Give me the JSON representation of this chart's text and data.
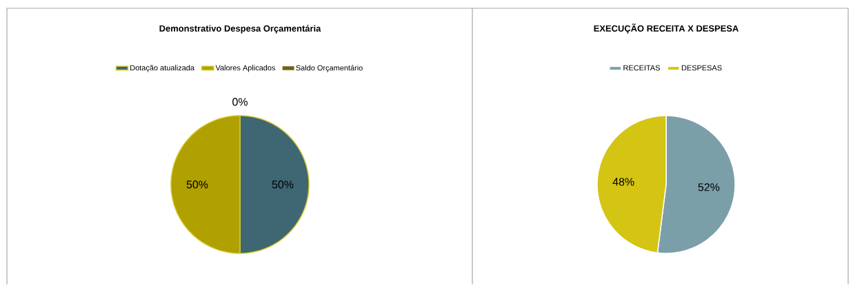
{
  "chart_data": [
    {
      "type": "pie",
      "title": "Demonstrativo Despesa Orçamentária",
      "categories": [
        "Dotação atualizada",
        "Valores Aplicados",
        "Saldo Orçamentário"
      ],
      "values": [
        50,
        50,
        0
      ],
      "value_labels": [
        "50%",
        "50%",
        "0%"
      ],
      "colors": [
        "#3f6673",
        "#b0a000",
        "#6b6030"
      ],
      "legend": "top"
    },
    {
      "type": "pie",
      "title": "EXECUÇÃO  RECEITA X DESPESA",
      "categories": [
        "RECEITAS",
        "DESPESAS"
      ],
      "values": [
        52,
        48
      ],
      "value_labels": [
        "52%",
        "48%"
      ],
      "colors": [
        "#7a9fa9",
        "#d4c413"
      ],
      "legend": "top"
    }
  ]
}
